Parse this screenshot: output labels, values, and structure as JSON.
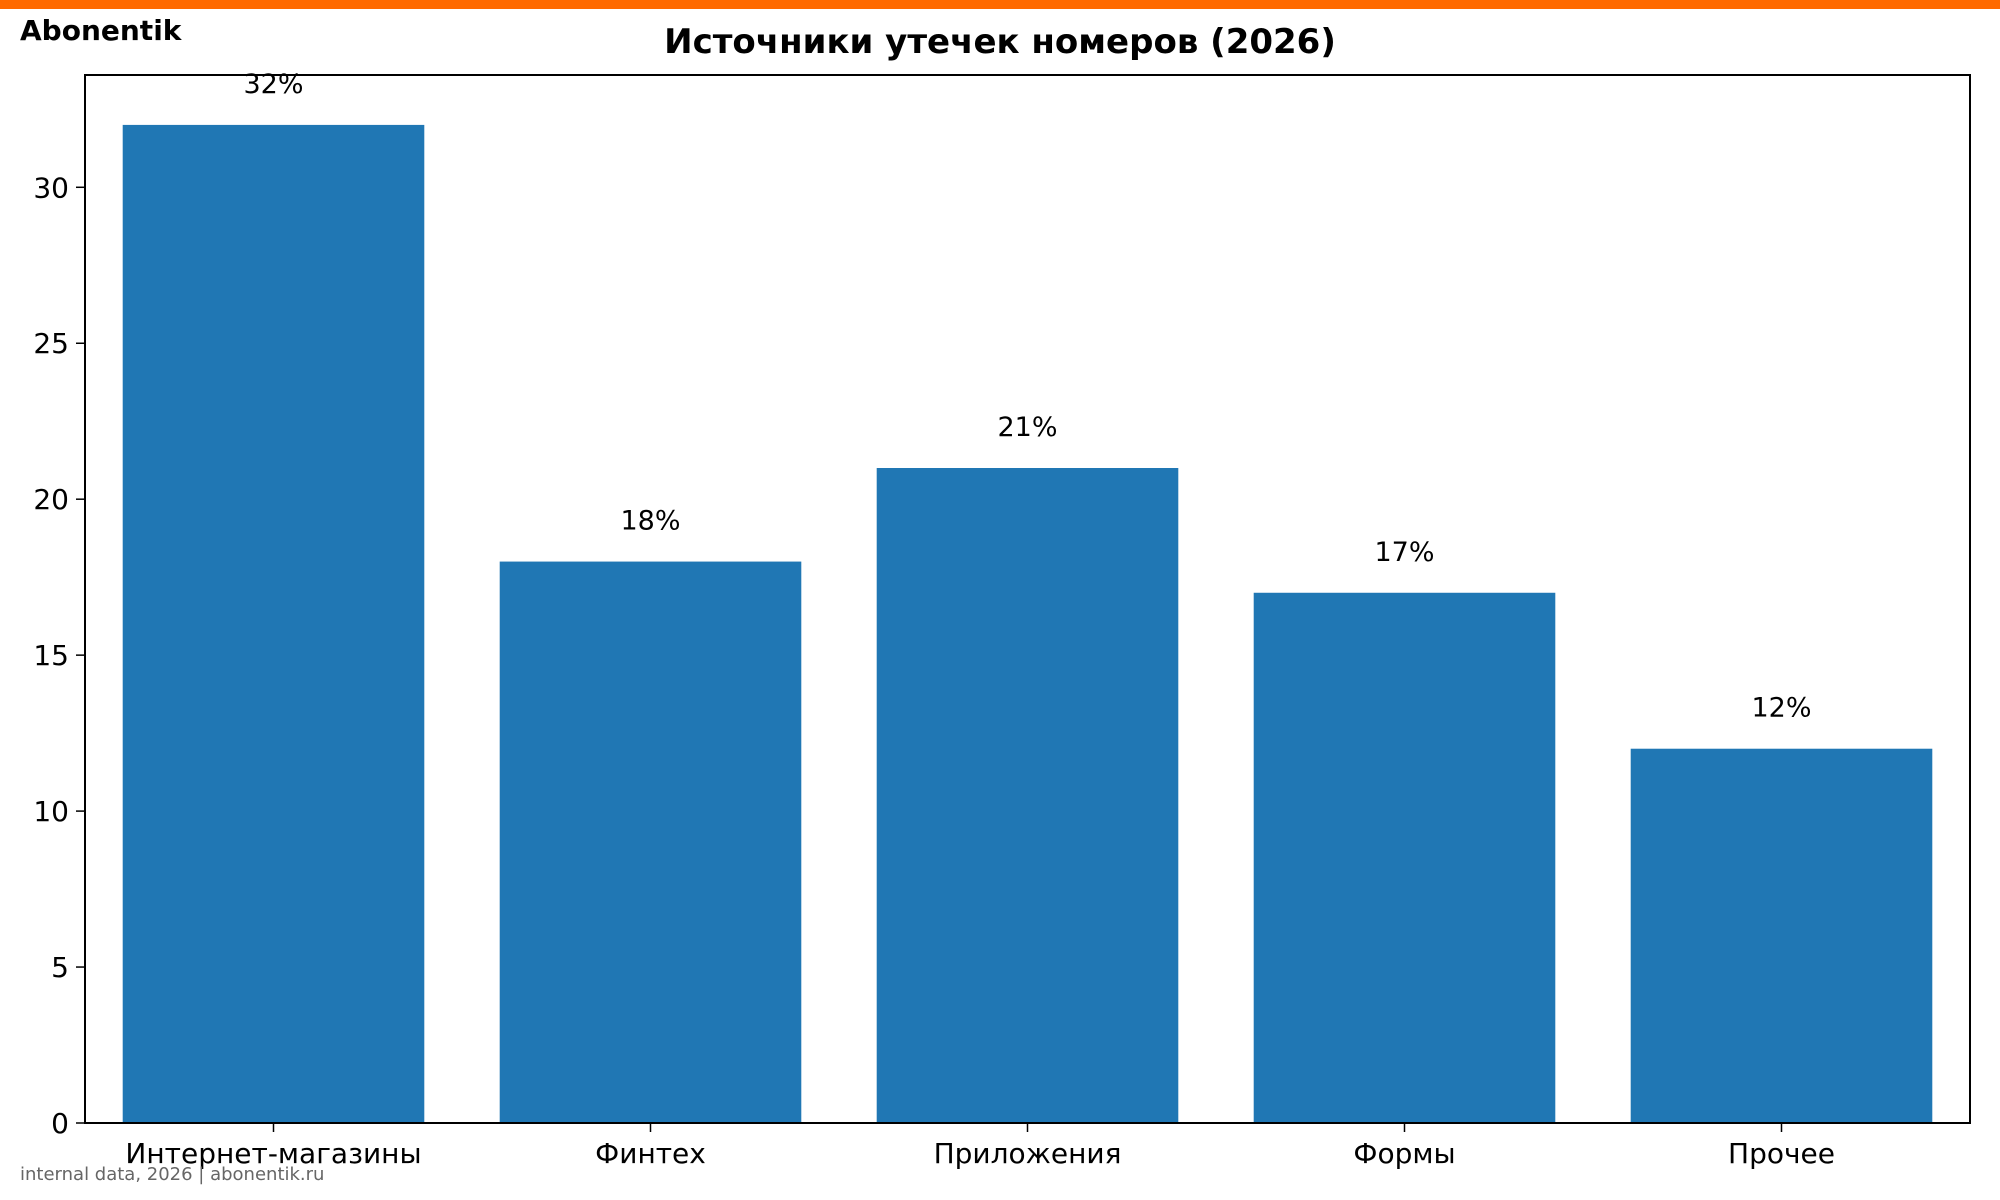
{
  "brand": "Abonentik",
  "footer": "internal data, 2026 | abonentik.ru",
  "colors": {
    "accent": "#FF6A00",
    "bar": "#2077B4"
  },
  "chart_data": {
    "type": "bar",
    "title": "Источники утечек номеров (2026)",
    "xlabel": "",
    "ylabel": "",
    "categories": [
      "Интернет-магазины",
      "Финтех",
      "Приложения",
      "Формы",
      "Прочее"
    ],
    "values": [
      32,
      18,
      21,
      17,
      12
    ],
    "data_labels": [
      "32%",
      "18%",
      "21%",
      "17%",
      "12%"
    ],
    "ylim": [
      0,
      33.6
    ],
    "yticks": [
      0,
      5,
      10,
      15,
      20,
      25,
      30
    ],
    "grid": false,
    "legend": "none"
  }
}
